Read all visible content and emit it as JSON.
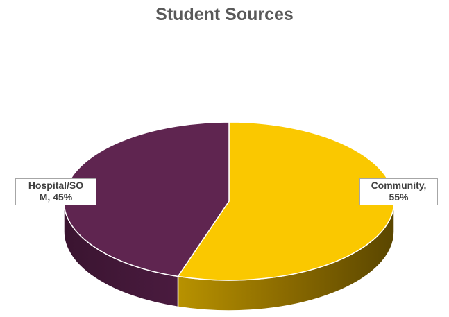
{
  "chart_data": {
    "type": "pie",
    "title": "Student Sources",
    "slices": [
      {
        "label": "Community",
        "label_text": "Community,\n55%",
        "value": 55,
        "color": "#FAC800"
      },
      {
        "label": "Hospital/SOM",
        "label_text": "Hospital/SO\nM, 45%",
        "value": 45,
        "color": "#5F2550"
      }
    ],
    "style": "3d"
  }
}
